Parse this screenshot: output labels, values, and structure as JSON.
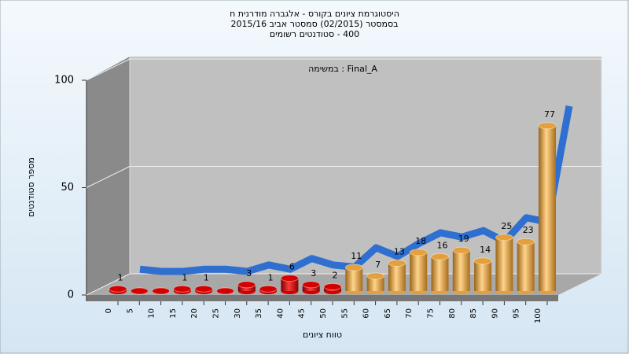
{
  "chart_data": {
    "type": "bar3d",
    "title": [
      "היסטוגרמת ציונים בקורס - אלגברה מודרנית ח",
      "בסמסטר  (02/2015)  סמסטר אביב 2015/16",
      "400 - סטודנטים רשומים"
    ],
    "annotation": "Final_A : במשימה",
    "y_label": "מספר סטודנטים",
    "x_label": "טווח ציונים",
    "categories": [
      "0",
      "5",
      "10",
      "15",
      "20",
      "25",
      "30",
      "35",
      "40",
      "45",
      "50",
      "55",
      "60",
      "65",
      "70",
      "75",
      "80",
      "85",
      "90",
      "95",
      "100"
    ],
    "values": [
      1,
      0,
      0,
      1,
      1,
      0,
      3,
      1,
      6,
      3,
      2,
      11,
      7,
      13,
      18,
      16,
      19,
      14,
      25,
      23,
      77
    ],
    "colors": [
      "#d40000",
      "#d40000",
      "#d40000",
      "#d40000",
      "#d40000",
      "#d40000",
      "#d40000",
      "#d40000",
      "#d40000",
      "#d40000",
      "#d40000",
      "#e3a03c",
      "#e3a03c",
      "#e3a03c",
      "#e3a03c",
      "#e3a03c",
      "#e3a03c",
      "#e3a03c",
      "#e3a03c",
      "#e3a03c",
      "#e3a03c"
    ],
    "line_color": "#2e6fd0",
    "ylim": [
      0,
      100
    ],
    "yticks": [
      0,
      50,
      100
    ],
    "grid": true
  }
}
